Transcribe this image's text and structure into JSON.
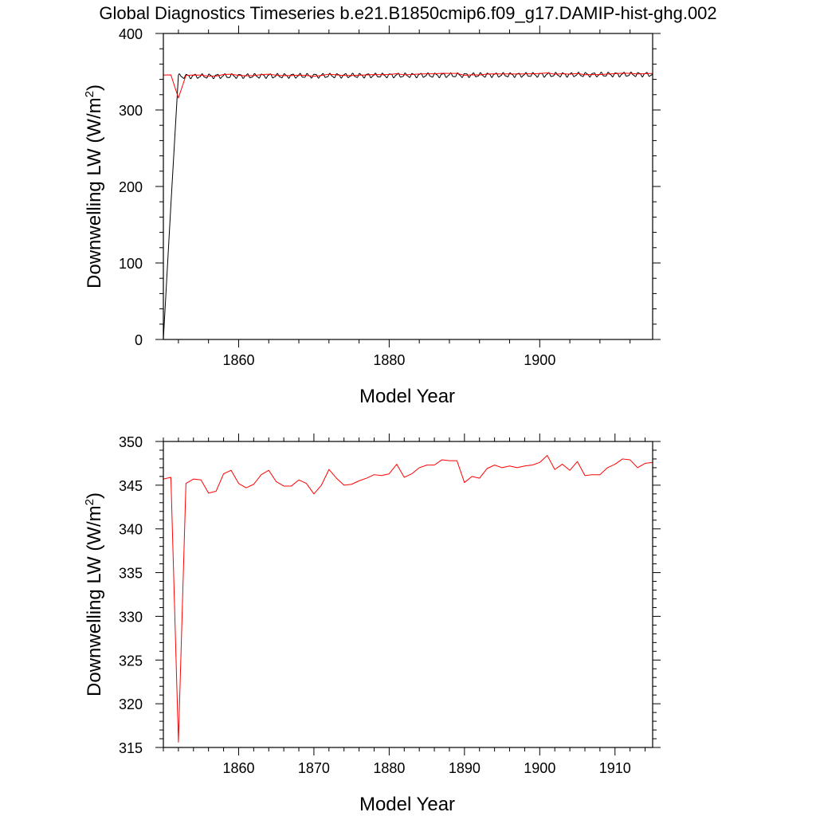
{
  "title": "Global Diagnostics Timeseries b.e21.B1850cmip6.f09_g17.DAMIP-hist-ghg.002",
  "chart_data": [
    {
      "type": "line",
      "xlabel": "Model Year",
      "ylabel_main": "Downwelling LW (W/m",
      "ylabel_sup": "2",
      "ylabel_close": ")",
      "xlim": [
        1850,
        1915
      ],
      "ylim": [
        0,
        400
      ],
      "xticks": [
        1860,
        1880,
        1900
      ],
      "yticks": [
        0,
        100,
        200,
        300,
        400
      ],
      "series": [
        {
          "color": "#000000",
          "kind": "monthly",
          "x": [
            1850.0,
            1851.0,
            1852.0,
            1852.5,
            1853.0
          ],
          "y": [
            0,
            176,
            348,
            344,
            346
          ],
          "cycle": {
            "start": 1852.0,
            "end": 1915.0,
            "base_start": 344.0,
            "base_end": 346.5,
            "amplitude": 2.5,
            "period": 1.0
          }
        },
        {
          "color": "#ff0000",
          "kind": "annual",
          "x": [
            1850,
            1851,
            1852,
            1853,
            1854,
            1855,
            1856,
            1857,
            1858,
            1859,
            1860,
            1861,
            1862,
            1863,
            1864,
            1865,
            1866,
            1867,
            1868,
            1869,
            1870,
            1871,
            1872,
            1873,
            1874,
            1875,
            1876,
            1877,
            1878,
            1879,
            1880,
            1881,
            1882,
            1883,
            1884,
            1885,
            1886,
            1887,
            1888,
            1889,
            1890,
            1891,
            1892,
            1893,
            1894,
            1895,
            1896,
            1897,
            1898,
            1899,
            1900,
            1901,
            1902,
            1903,
            1904,
            1905,
            1906,
            1907,
            1908,
            1909,
            1910,
            1911,
            1912,
            1913,
            1914,
            1915
          ],
          "y": [
            345.7,
            345.9,
            315.6,
            345.2,
            345.7,
            345.6,
            344.1,
            344.3,
            346.3,
            346.7,
            345.2,
            344.7,
            345.1,
            346.2,
            346.7,
            345.4,
            344.9,
            344.9,
            345.6,
            345.2,
            344.0,
            345.0,
            346.8,
            345.8,
            345.0,
            345.1,
            345.5,
            345.8,
            346.2,
            346.1,
            346.3,
            347.4,
            345.9,
            346.3,
            347.0,
            347.3,
            347.3,
            347.9,
            347.8,
            347.8,
            345.3,
            346.0,
            345.8,
            346.9,
            347.3,
            347.0,
            347.2,
            347.0,
            347.2,
            347.3,
            347.6,
            348.4,
            346.8,
            347.4,
            346.7,
            347.7,
            346.1,
            346.2,
            346.2,
            347.0,
            347.4,
            348.0,
            347.9,
            347.0,
            347.5,
            347.6
          ]
        }
      ]
    },
    {
      "type": "line",
      "xlabel": "Model Year",
      "ylabel_main": "Downwelling LW (W/m",
      "ylabel_sup": "2",
      "ylabel_close": ")",
      "xlim": [
        1850,
        1915
      ],
      "ylim": [
        315,
        350
      ],
      "xticks": [
        1860,
        1870,
        1880,
        1890,
        1900,
        1910
      ],
      "yticks": [
        315,
        320,
        325,
        330,
        335,
        340,
        345,
        350
      ],
      "series": [
        {
          "color": "#ff0000",
          "kind": "annual",
          "x": [
            1850,
            1851,
            1852,
            1853,
            1854,
            1855,
            1856,
            1857,
            1858,
            1859,
            1860,
            1861,
            1862,
            1863,
            1864,
            1865,
            1866,
            1867,
            1868,
            1869,
            1870,
            1871,
            1872,
            1873,
            1874,
            1875,
            1876,
            1877,
            1878,
            1879,
            1880,
            1881,
            1882,
            1883,
            1884,
            1885,
            1886,
            1887,
            1888,
            1889,
            1890,
            1891,
            1892,
            1893,
            1894,
            1895,
            1896,
            1897,
            1898,
            1899,
            1900,
            1901,
            1902,
            1903,
            1904,
            1905,
            1906,
            1907,
            1908,
            1909,
            1910,
            1911,
            1912,
            1913,
            1914,
            1915
          ],
          "y": [
            345.7,
            345.9,
            315.6,
            345.2,
            345.7,
            345.6,
            344.1,
            344.3,
            346.3,
            346.7,
            345.2,
            344.7,
            345.1,
            346.2,
            346.7,
            345.4,
            344.9,
            344.9,
            345.6,
            345.2,
            344.0,
            345.0,
            346.8,
            345.8,
            345.0,
            345.1,
            345.5,
            345.8,
            346.2,
            346.1,
            346.3,
            347.4,
            345.9,
            346.3,
            347.0,
            347.3,
            347.3,
            347.9,
            347.8,
            347.8,
            345.3,
            346.0,
            345.8,
            346.9,
            347.3,
            347.0,
            347.2,
            347.0,
            347.2,
            347.3,
            347.6,
            348.4,
            346.8,
            347.4,
            346.7,
            347.7,
            346.1,
            346.2,
            346.2,
            347.0,
            347.4,
            348.0,
            347.9,
            347.0,
            347.5,
            347.6
          ]
        }
      ]
    }
  ]
}
